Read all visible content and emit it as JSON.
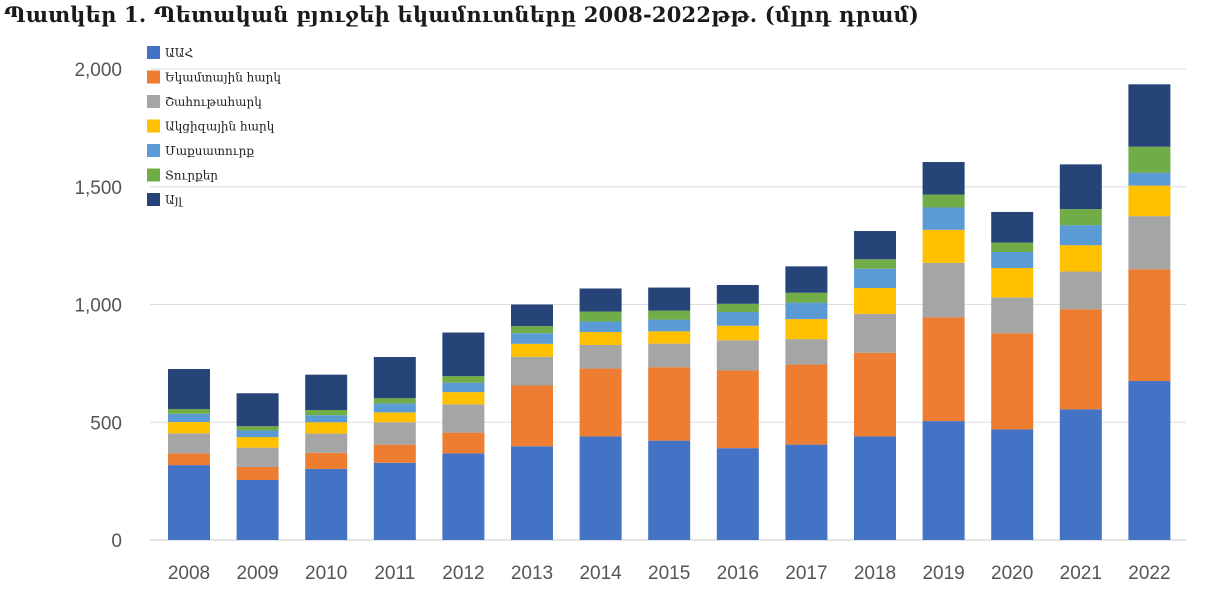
{
  "title": "Պատկեր 1. Պետական բյուջեի եկամուտները 2008-2022թթ. (մլրդ դրամ)",
  "chart_data": {
    "type": "bar",
    "stacked": true,
    "categories": [
      "2008",
      "2009",
      "2010",
      "2011",
      "2012",
      "2013",
      "2014",
      "2015",
      "2016",
      "2017",
      "2018",
      "2019",
      "2020",
      "2021",
      "2022"
    ],
    "ylim": [
      0,
      2000
    ],
    "yticks": [
      0,
      500,
      1000,
      1500,
      2000
    ],
    "ytick_labels": [
      "0",
      "500",
      "1,000",
      "1,500",
      "2,000"
    ],
    "grid": true,
    "legend_position": "top-left",
    "series": [
      {
        "name": "ԱԱՀ",
        "color": "#4472c4",
        "values": [
          318,
          255,
          302,
          328,
          368,
          398,
          440,
          422,
          390,
          405,
          440,
          505,
          470,
          555,
          675
        ]
      },
      {
        "name": "Եկամտային հարկ",
        "color": "#ed7d31",
        "values": [
          50,
          55,
          68,
          77,
          88,
          258,
          288,
          312,
          330,
          340,
          355,
          440,
          408,
          425,
          475
        ]
      },
      {
        "name": "Շահութահարկ",
        "color": "#a5a5a5",
        "values": [
          85,
          82,
          82,
          95,
          120,
          122,
          100,
          100,
          128,
          108,
          165,
          232,
          152,
          160,
          225
        ]
      },
      {
        "name": "Ակցիզային հարկ",
        "color": "#ffc000",
        "values": [
          48,
          45,
          48,
          42,
          52,
          55,
          55,
          52,
          62,
          85,
          110,
          140,
          125,
          112,
          130
        ]
      },
      {
        "name": "Մաքսատուրք",
        "color": "#5b9bd5",
        "values": [
          35,
          28,
          30,
          38,
          40,
          45,
          45,
          50,
          58,
          70,
          82,
          95,
          68,
          85,
          55
        ]
      },
      {
        "name": "Տուրքեր",
        "color": "#70ad47",
        "values": [
          20,
          18,
          22,
          22,
          28,
          30,
          42,
          38,
          35,
          42,
          40,
          55,
          40,
          68,
          110
        ]
      },
      {
        "name": "Այլ",
        "color": "#264478",
        "values": [
          170,
          140,
          150,
          175,
          185,
          92,
          98,
          98,
          80,
          112,
          120,
          138,
          130,
          190,
          265
        ]
      }
    ]
  }
}
